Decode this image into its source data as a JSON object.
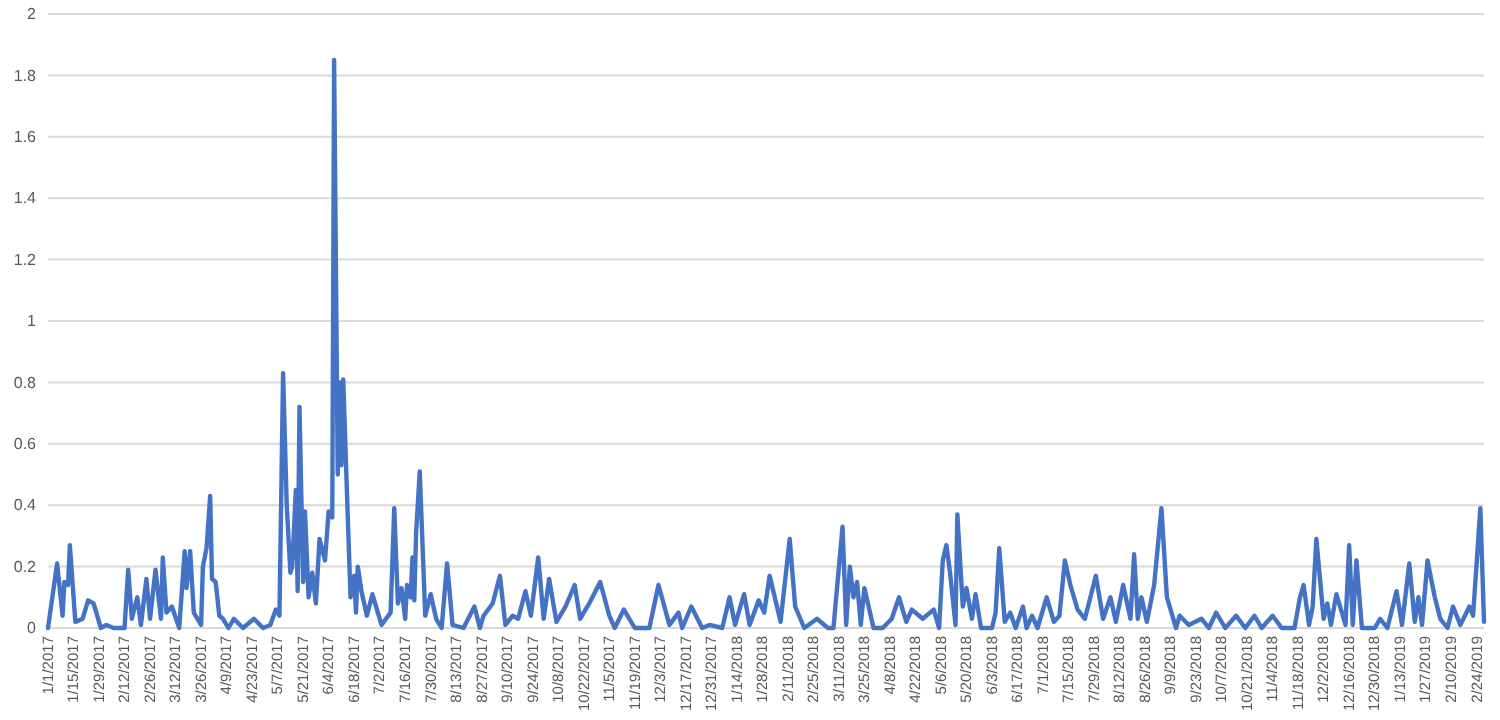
{
  "chart_data": {
    "type": "line",
    "line_style": "solid",
    "marker": "none",
    "grid": "y",
    "xlim": [
      "2017-01-01",
      "2019-02-28"
    ],
    "xticks": [
      {
        "value": "2017-01-01",
        "label": "1/1/2017"
      },
      {
        "value": "2017-01-15",
        "label": "1/15/2017"
      },
      {
        "value": "2017-01-29",
        "label": "1/29/2017"
      },
      {
        "value": "2017-02-12",
        "label": "2/12/2017"
      },
      {
        "value": "2017-02-26",
        "label": "2/26/2017"
      },
      {
        "value": "2017-03-12",
        "label": "3/12/2017"
      },
      {
        "value": "2017-03-26",
        "label": "3/26/2017"
      },
      {
        "value": "2017-04-09",
        "label": "4/9/2017"
      },
      {
        "value": "2017-04-23",
        "label": "4/23/2017"
      },
      {
        "value": "2017-05-07",
        "label": "5/7/2017"
      },
      {
        "value": "2017-05-21",
        "label": "5/21/2017"
      },
      {
        "value": "2017-06-04",
        "label": "6/4/2017"
      },
      {
        "value": "2017-06-18",
        "label": "6/18/2017"
      },
      {
        "value": "2017-07-02",
        "label": "7/2/2017"
      },
      {
        "value": "2017-07-16",
        "label": "7/16/2017"
      },
      {
        "value": "2017-07-30",
        "label": "7/30/2017"
      },
      {
        "value": "2017-08-13",
        "label": "8/13/2017"
      },
      {
        "value": "2017-08-27",
        "label": "8/27/2017"
      },
      {
        "value": "2017-09-10",
        "label": "9/10/2017"
      },
      {
        "value": "2017-09-24",
        "label": "9/24/2017"
      },
      {
        "value": "2017-10-08",
        "label": "10/8/2017"
      },
      {
        "value": "2017-10-22",
        "label": "10/22/2017"
      },
      {
        "value": "2017-11-05",
        "label": "11/5/2017"
      },
      {
        "value": "2017-11-19",
        "label": "11/19/2017"
      },
      {
        "value": "2017-12-03",
        "label": "12/3/2017"
      },
      {
        "value": "2017-12-17",
        "label": "12/17/2017"
      },
      {
        "value": "2017-12-31",
        "label": "12/31/2017"
      },
      {
        "value": "2018-01-14",
        "label": "1/14/2018"
      },
      {
        "value": "2018-01-28",
        "label": "1/28/2018"
      },
      {
        "value": "2018-02-11",
        "label": "2/11/2018"
      },
      {
        "value": "2018-02-25",
        "label": "2/25/2018"
      },
      {
        "value": "2018-03-11",
        "label": "3/11/2018"
      },
      {
        "value": "2018-03-25",
        "label": "3/25/2018"
      },
      {
        "value": "2018-04-08",
        "label": "4/8/2018"
      },
      {
        "value": "2018-04-22",
        "label": "4/22/2018"
      },
      {
        "value": "2018-05-06",
        "label": "5/6/2018"
      },
      {
        "value": "2018-05-20",
        "label": "5/20/2018"
      },
      {
        "value": "2018-06-03",
        "label": "6/3/2018"
      },
      {
        "value": "2018-06-17",
        "label": "6/17/2018"
      },
      {
        "value": "2018-07-01",
        "label": "7/1/2018"
      },
      {
        "value": "2018-07-15",
        "label": "7/15/2018"
      },
      {
        "value": "2018-07-29",
        "label": "7/29/2018"
      },
      {
        "value": "2018-08-12",
        "label": "8/12/2018"
      },
      {
        "value": "2018-08-26",
        "label": "8/26/2018"
      },
      {
        "value": "2018-09-09",
        "label": "9/9/2018"
      },
      {
        "value": "2018-09-23",
        "label": "9/23/2018"
      },
      {
        "value": "2018-10-07",
        "label": "10/7/2018"
      },
      {
        "value": "2018-10-21",
        "label": "10/21/2018"
      },
      {
        "value": "2018-11-04",
        "label": "11/4/2018"
      },
      {
        "value": "2018-11-18",
        "label": "11/18/2018"
      },
      {
        "value": "2018-12-02",
        "label": "12/2/2018"
      },
      {
        "value": "2018-12-16",
        "label": "12/16/2018"
      },
      {
        "value": "2018-12-30",
        "label": "12/30/2018"
      },
      {
        "value": "2019-01-13",
        "label": "1/13/2019"
      },
      {
        "value": "2019-01-27",
        "label": "1/27/2019"
      },
      {
        "value": "2019-02-10",
        "label": "2/10/2019"
      },
      {
        "value": "2019-02-24",
        "label": "2/24/2019"
      }
    ],
    "ylim": [
      0,
      2
    ],
    "yticks": [
      0,
      0.2,
      0.4,
      0.6,
      0.8,
      1,
      1.2,
      1.4,
      1.6,
      1.8,
      2
    ],
    "series": [
      {
        "color": "#4472c4",
        "x": [
          "2017-01-01",
          "2017-01-06",
          "2017-01-09",
          "2017-01-10",
          "2017-01-12",
          "2017-01-13",
          "2017-01-16",
          "2017-01-20",
          "2017-01-23",
          "2017-01-26",
          "2017-01-30",
          "2017-02-02",
          "2017-02-06",
          "2017-02-12",
          "2017-02-14",
          "2017-02-16",
          "2017-02-19",
          "2017-02-21",
          "2017-02-24",
          "2017-02-26",
          "2017-03-01",
          "2017-03-04",
          "2017-03-05",
          "2017-03-07",
          "2017-03-10",
          "2017-03-14",
          "2017-03-17",
          "2017-03-18",
          "2017-03-20",
          "2017-03-22",
          "2017-03-26",
          "2017-03-27",
          "2017-03-29",
          "2017-03-31",
          "2017-04-01",
          "2017-04-03",
          "2017-04-05",
          "2017-04-07",
          "2017-04-10",
          "2017-04-13",
          "2017-04-18",
          "2017-04-24",
          "2017-04-29",
          "2017-05-03",
          "2017-05-06",
          "2017-05-08",
          "2017-05-10",
          "2017-05-12",
          "2017-05-14",
          "2017-05-15",
          "2017-05-17",
          "2017-05-18",
          "2017-05-19",
          "2017-05-21",
          "2017-05-22",
          "2017-05-24",
          "2017-05-26",
          "2017-05-28",
          "2017-05-30",
          "2017-06-02",
          "2017-06-04",
          "2017-06-06",
          "2017-06-07",
          "2017-06-09",
          "2017-06-10",
          "2017-06-11",
          "2017-06-12",
          "2017-06-14",
          "2017-06-16",
          "2017-06-18",
          "2017-06-19",
          "2017-06-20",
          "2017-06-22",
          "2017-06-25",
          "2017-06-28",
          "2017-07-03",
          "2017-07-08",
          "2017-07-10",
          "2017-07-12",
          "2017-07-14",
          "2017-07-16",
          "2017-07-17",
          "2017-07-19",
          "2017-07-20",
          "2017-07-21",
          "2017-07-22",
          "2017-07-24",
          "2017-07-27",
          "2017-07-30",
          "2017-08-02",
          "2017-08-05",
          "2017-08-08",
          "2017-08-11",
          "2017-08-17",
          "2017-08-23",
          "2017-08-26",
          "2017-08-28",
          "2017-09-02",
          "2017-09-06",
          "2017-09-09",
          "2017-09-13",
          "2017-09-16",
          "2017-09-20",
          "2017-09-23",
          "2017-09-27",
          "2017-09-30",
          "2017-10-03",
          "2017-10-07",
          "2017-10-12",
          "2017-10-17",
          "2017-10-20",
          "2017-10-25",
          "2017-10-31",
          "2017-11-05",
          "2017-11-08",
          "2017-11-13",
          "2017-11-19",
          "2017-11-27",
          "2017-12-02",
          "2017-12-08",
          "2017-12-13",
          "2017-12-15",
          "2017-12-20",
          "2017-12-26",
          "2017-12-30",
          "2018-01-06",
          "2018-01-10",
          "2018-01-13",
          "2018-01-18",
          "2018-01-21",
          "2018-01-26",
          "2018-01-29",
          "2018-02-01",
          "2018-02-07",
          "2018-02-12",
          "2018-02-15",
          "2018-02-20",
          "2018-02-27",
          "2018-03-05",
          "2018-03-08",
          "2018-03-13",
          "2018-03-15",
          "2018-03-17",
          "2018-03-19",
          "2018-03-21",
          "2018-03-23",
          "2018-03-25",
          "2018-03-30",
          "2018-04-04",
          "2018-04-09",
          "2018-04-13",
          "2018-04-17",
          "2018-04-20",
          "2018-04-26",
          "2018-05-02",
          "2018-05-05",
          "2018-05-07",
          "2018-05-09",
          "2018-05-11",
          "2018-05-14",
          "2018-05-15",
          "2018-05-18",
          "2018-05-20",
          "2018-05-23",
          "2018-05-25",
          "2018-05-28",
          "2018-06-03",
          "2018-06-05",
          "2018-06-07",
          "2018-06-10",
          "2018-06-13",
          "2018-06-16",
          "2018-06-20",
          "2018-06-22",
          "2018-06-25",
          "2018-06-28",
          "2018-07-03",
          "2018-07-07",
          "2018-07-10",
          "2018-07-13",
          "2018-07-16",
          "2018-07-20",
          "2018-07-24",
          "2018-07-30",
          "2018-08-03",
          "2018-08-07",
          "2018-08-10",
          "2018-08-14",
          "2018-08-18",
          "2018-08-20",
          "2018-08-22",
          "2018-08-24",
          "2018-08-27",
          "2018-08-31",
          "2018-09-04",
          "2018-09-07",
          "2018-09-12",
          "2018-09-14",
          "2018-09-19",
          "2018-09-26",
          "2018-09-30",
          "2018-10-04",
          "2018-10-09",
          "2018-10-15",
          "2018-10-20",
          "2018-10-25",
          "2018-10-29",
          "2018-11-04",
          "2018-11-09",
          "2018-11-16",
          "2018-11-19",
          "2018-11-21",
          "2018-11-24",
          "2018-11-26",
          "2018-11-28",
          "2018-12-02",
          "2018-12-04",
          "2018-12-06",
          "2018-12-09",
          "2018-12-14",
          "2018-12-16",
          "2018-12-18",
          "2018-12-20",
          "2018-12-23",
          "2018-12-30",
          "2019-01-02",
          "2019-01-06",
          "2019-01-11",
          "2019-01-14",
          "2019-01-18",
          "2019-01-21",
          "2019-01-23",
          "2019-01-25",
          "2019-01-28",
          "2019-02-01",
          "2019-02-04",
          "2019-02-08",
          "2019-02-11",
          "2019-02-15",
          "2019-02-20",
          "2019-02-22",
          "2019-02-26",
          "2019-02-28"
        ],
        "values": [
          0,
          0.21,
          0.04,
          0.15,
          0.14,
          0.27,
          0.02,
          0.03,
          0.09,
          0.08,
          0,
          0.01,
          0,
          0,
          0.19,
          0.03,
          0.1,
          0.01,
          0.16,
          0.03,
          0.19,
          0.03,
          0.23,
          0.05,
          0.07,
          0,
          0.25,
          0.13,
          0.25,
          0.05,
          0.01,
          0.2,
          0.26,
          0.43,
          0.16,
          0.15,
          0.04,
          0.03,
          0,
          0.03,
          0,
          0.03,
          0,
          0.01,
          0.06,
          0.04,
          0.83,
          0.4,
          0.18,
          0.2,
          0.45,
          0.12,
          0.72,
          0.15,
          0.38,
          0.1,
          0.18,
          0.08,
          0.29,
          0.22,
          0.38,
          0.36,
          1.85,
          0.5,
          0.8,
          0.53,
          0.81,
          0.45,
          0.1,
          0.17,
          0.05,
          0.2,
          0.12,
          0.04,
          0.11,
          0.01,
          0.05,
          0.39,
          0.08,
          0.13,
          0.03,
          0.14,
          0.1,
          0.23,
          0.09,
          0.31,
          0.51,
          0.04,
          0.11,
          0.03,
          0,
          0.21,
          0.01,
          0,
          0.07,
          0,
          0.04,
          0.08,
          0.17,
          0.01,
          0.04,
          0.03,
          0.12,
          0.04,
          0.23,
          0.03,
          0.16,
          0.02,
          0.07,
          0.14,
          0.03,
          0.08,
          0.15,
          0.04,
          0,
          0.06,
          0,
          0,
          0.14,
          0.01,
          0.05,
          0,
          0.07,
          0,
          0.01,
          0,
          0.1,
          0.01,
          0.11,
          0.01,
          0.09,
          0.05,
          0.17,
          0.02,
          0.29,
          0.07,
          0,
          0.03,
          0,
          0,
          0.33,
          0.01,
          0.2,
          0.1,
          0.15,
          0.01,
          0.13,
          0,
          0,
          0.03,
          0.1,
          0.02,
          0.06,
          0.03,
          0.06,
          0,
          0.22,
          0.27,
          0.18,
          0.01,
          0.37,
          0.07,
          0.13,
          0.03,
          0.11,
          0,
          0,
          0.05,
          0.26,
          0.02,
          0.05,
          0,
          0.07,
          0,
          0.04,
          0,
          0.1,
          0.02,
          0.04,
          0.22,
          0.14,
          0.06,
          0.03,
          0.17,
          0.03,
          0.1,
          0.02,
          0.14,
          0.03,
          0.24,
          0.03,
          0.1,
          0.02,
          0.14,
          0.39,
          0.1,
          0,
          0.04,
          0.01,
          0.03,
          0,
          0.05,
          0,
          0.04,
          0,
          0.04,
          0,
          0.04,
          0,
          0,
          0.1,
          0.14,
          0.01,
          0.07,
          0.29,
          0.03,
          0.08,
          0.01,
          0.11,
          0.01,
          0.27,
          0.01,
          0.22,
          0,
          0,
          0.03,
          0,
          0.12,
          0.01,
          0.21,
          0.02,
          0.1,
          0.01,
          0.22,
          0.1,
          0.03,
          0,
          0.07,
          0.01,
          0.07,
          0.04,
          0.39,
          0.02
        ]
      }
    ]
  }
}
